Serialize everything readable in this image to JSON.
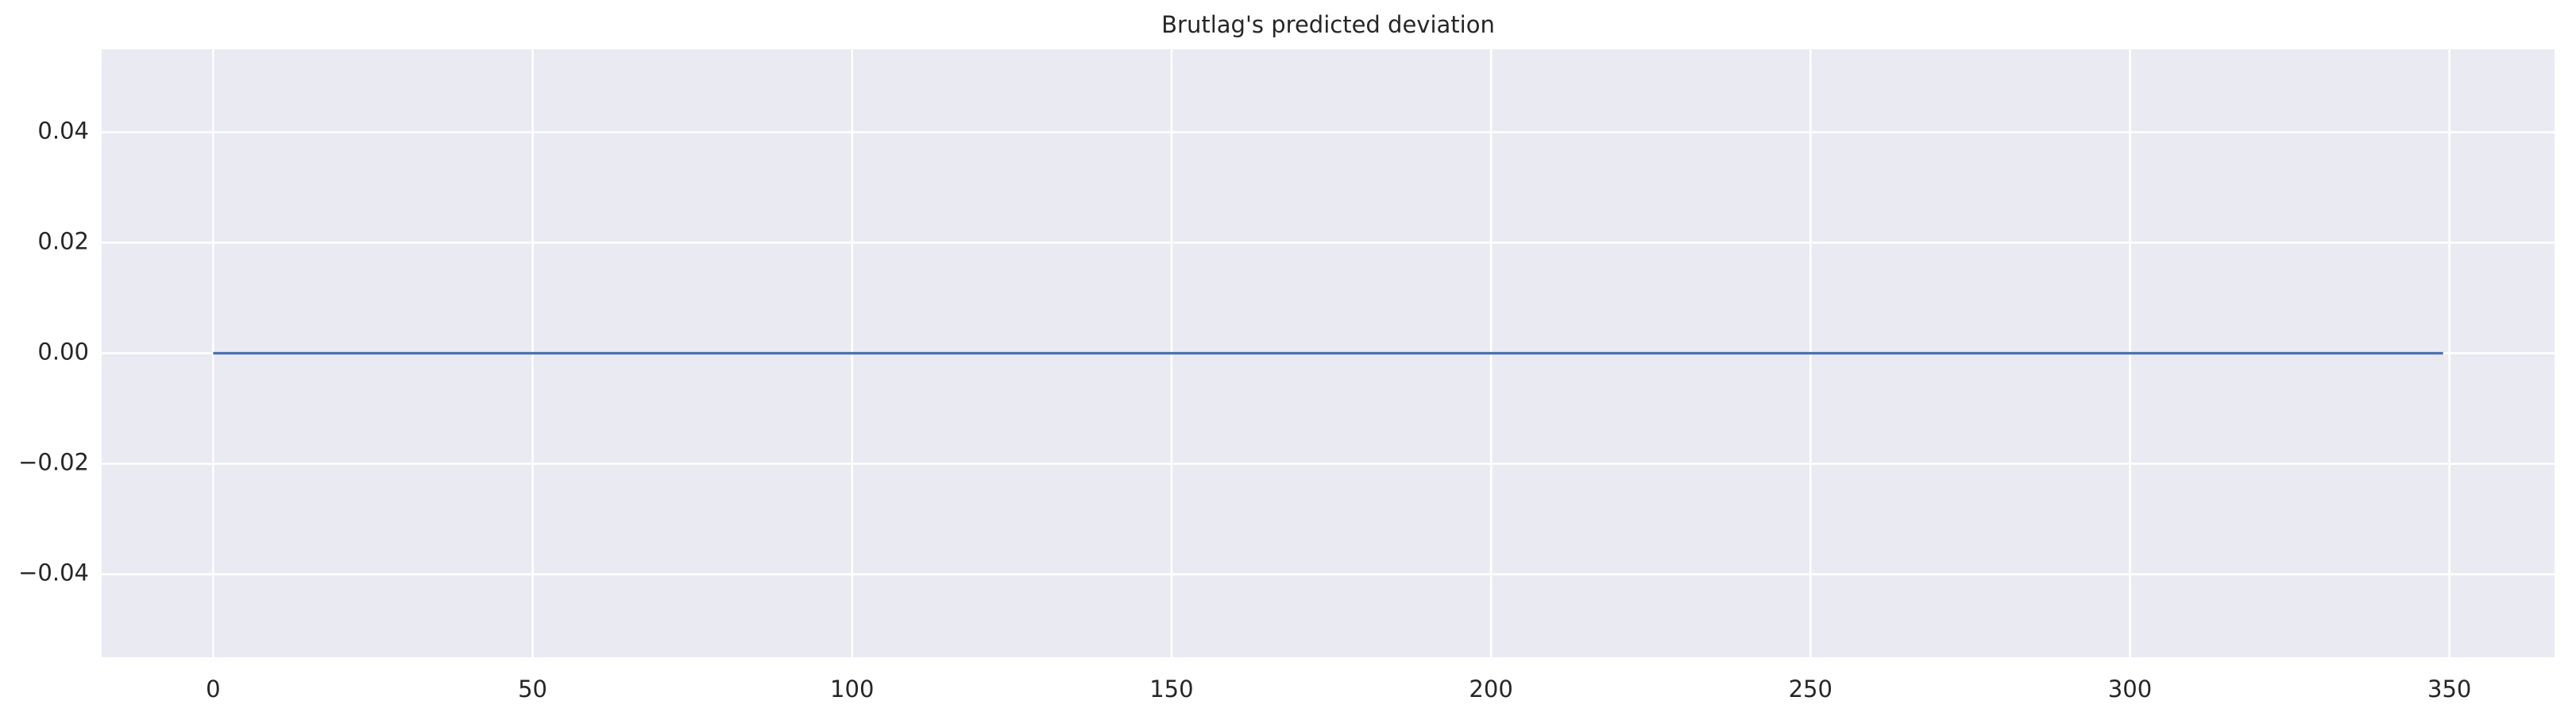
{
  "chart_data": {
    "type": "line",
    "title": "Brutlag's predicted deviation",
    "x": [
      0,
      349
    ],
    "series": [
      {
        "color": "#4c72b0",
        "values": [
          0,
          0
        ]
      }
    ],
    "xlim": [
      -17.45,
      366.45
    ],
    "xticks": [
      0,
      50,
      100,
      150,
      200,
      250,
      300,
      350
    ],
    "ylim": [
      -0.055,
      0.055
    ],
    "yticks": [
      {
        "value": -0.04,
        "label": "−0.04"
      },
      {
        "value": -0.02,
        "label": "−0.02"
      },
      {
        "value": 0,
        "label": "0.00"
      },
      {
        "value": 0.02,
        "label": "0.02"
      },
      {
        "value": 0.04,
        "label": "0.04"
      }
    ],
    "grid": true,
    "background": "#eaeaf2"
  }
}
